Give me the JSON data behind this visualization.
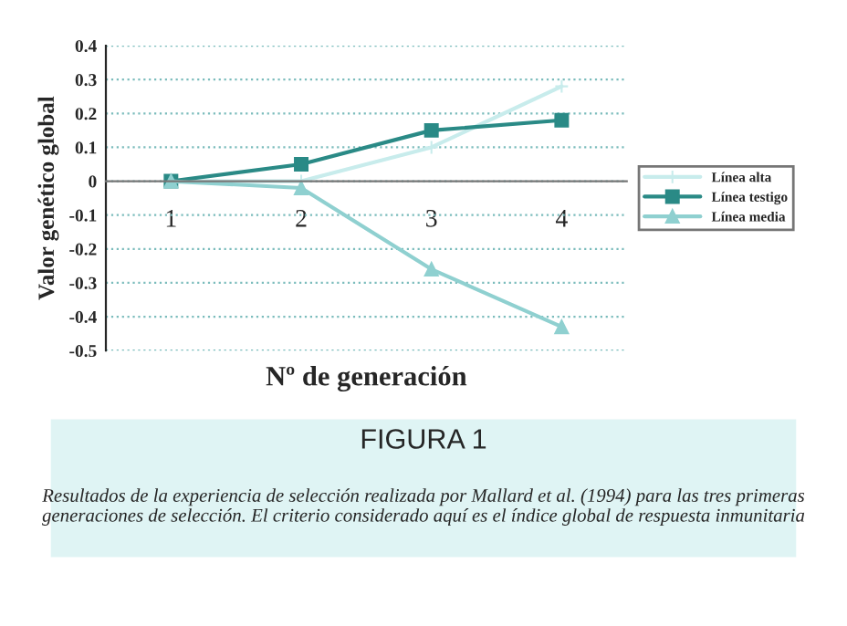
{
  "chart_data": {
    "type": "line",
    "title": "FIGURA 1",
    "xlabel": "Nº de generación",
    "ylabel": "Valor genético global",
    "categories": [
      "1",
      "2",
      "3",
      "4"
    ],
    "series": [
      {
        "name": "Línea alta",
        "color": "#c8ecec",
        "marker": "cross",
        "values": [
          0,
          0,
          0.1,
          0.28
        ]
      },
      {
        "name": "Línea testigo",
        "color": "#2a8a86",
        "marker": "square",
        "values": [
          0,
          0.05,
          0.15,
          0.18
        ]
      },
      {
        "name": "Línea media",
        "color": "#8fd0d0",
        "marker": "triangle",
        "values": [
          0,
          -0.02,
          -0.26,
          -0.43
        ]
      }
    ],
    "ylim": [
      -0.5,
      0.4
    ],
    "yticks": [
      -0.5,
      -0.4,
      -0.3,
      -0.2,
      -0.1,
      0,
      0.1,
      0.2,
      0.3,
      0.4
    ],
    "grid": "y",
    "legend": "right",
    "annotations": [
      "Resultados de la experiencia de selección realizada por Mallard et al. (1994) para las tres primeras generaciones de selección. El criterio considerado aquí es el índice global de respuesta inmunitaria"
    ]
  }
}
